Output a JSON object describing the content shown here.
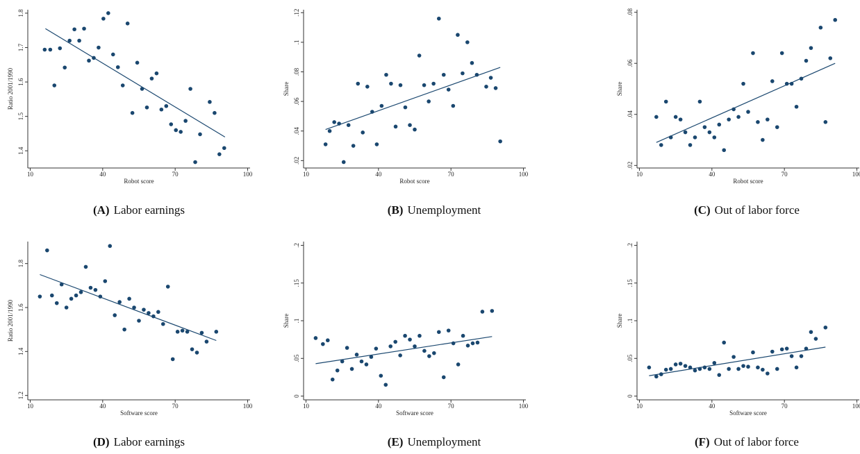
{
  "chart_data": [
    {
      "type": "scatter",
      "panel": "(A)",
      "title": "Labor earnings",
      "xlabel": "Robot score",
      "ylabel": "Ratio 2001/1990",
      "color": "#1a476f",
      "x": [
        16,
        18.3,
        20,
        22.3,
        24.3,
        26.3,
        28.3,
        30.3,
        32.3,
        34.3,
        36.3,
        38.3,
        40.3,
        42.3,
        44.3,
        46.3,
        48.3,
        50.3,
        52.3,
        54.3,
        56.3,
        58.3,
        60.3,
        62.3,
        64.3,
        66.3,
        68.3,
        70.3,
        72.3,
        74.3,
        76.3,
        78.3,
        80.3,
        84.3,
        86.3,
        88.3,
        90.3
      ],
      "y": [
        1.694,
        1.694,
        1.59,
        1.698,
        1.642,
        1.72,
        1.753,
        1.72,
        1.755,
        1.662,
        1.67,
        1.7,
        1.784,
        1.8,
        1.68,
        1.643,
        1.59,
        1.77,
        1.51,
        1.656,
        1.58,
        1.526,
        1.61,
        1.625,
        1.52,
        1.53,
        1.477,
        1.46,
        1.455,
        1.487,
        1.58,
        1.367,
        1.448,
        1.542,
        1.51,
        1.39,
        1.408
      ],
      "fit": {
        "x": [
          16.3,
          90.6
        ],
        "y": [
          1.755,
          1.44
        ]
      },
      "xlim": [
        9,
        101
      ],
      "ylim": [
        1.35,
        1.81
      ],
      "xticks": [
        10,
        40,
        70,
        100
      ],
      "yticks": [
        1.4,
        1.5,
        1.6,
        1.7,
        1.8
      ]
    },
    {
      "type": "scatter",
      "panel": "(B)",
      "title": "Unemployment",
      "xlabel": "Robot score",
      "ylabel": "Share",
      "color": "#1a476f",
      "x": [
        18.1,
        19.8,
        21.7,
        23.7,
        25.6,
        27.6,
        29.6,
        31.5,
        33.5,
        35.4,
        37.4,
        39.3,
        41.3,
        43.2,
        45.2,
        47.1,
        49.1,
        51.1,
        53,
        55,
        56.9,
        58.9,
        60.8,
        62.8,
        65,
        67,
        69,
        70.9,
        72.8,
        74.8,
        76.8,
        78.7,
        80.7,
        84.6,
        86.5,
        88.5,
        90.4
      ],
      "y": [
        0.031,
        0.04,
        0.046,
        0.045,
        0.019,
        0.044,
        0.03,
        0.072,
        0.039,
        0.07,
        0.053,
        0.031,
        0.057,
        0.078,
        0.072,
        0.043,
        0.071,
        0.056,
        0.044,
        0.041,
        0.091,
        0.071,
        0.06,
        0.072,
        0.116,
        0.078,
        0.068,
        0.057,
        0.105,
        0.079,
        0.1,
        0.086,
        0.078,
        0.07,
        0.076,
        0.069,
        0.033
      ],
      "fit": {
        "x": [
          18.1,
          90.4
        ],
        "y": [
          0.041,
          0.083
        ]
      },
      "xlim": [
        9,
        101
      ],
      "ylim": [
        0.015,
        0.122
      ],
      "xticks": [
        10,
        40,
        70,
        100
      ],
      "yticks": [
        {
          "value": 0.02,
          "label": ".02"
        },
        {
          "value": 0.04,
          "label": ".04"
        },
        {
          "value": 0.06,
          "label": ".06"
        },
        {
          "value": 0.08,
          "label": ".08"
        },
        {
          "value": 0.1,
          "label": ".1"
        },
        {
          "value": 0.12,
          "label": ".12"
        }
      ]
    },
    {
      "type": "scatter",
      "panel": "(C)",
      "title": "Out of labor force",
      "xlabel": "Robot score",
      "ylabel": "Share",
      "color": "#1a476f",
      "x": [
        17,
        19,
        21,
        23,
        25,
        27,
        29,
        31,
        33,
        35,
        37,
        39,
        41,
        43,
        45,
        47,
        49,
        51,
        53,
        55,
        57,
        59,
        61,
        63,
        65,
        67,
        69,
        71,
        73,
        75,
        77,
        79,
        81,
        85,
        87,
        89,
        91
      ],
      "y": [
        0.039,
        0.028,
        0.045,
        0.031,
        0.039,
        0.038,
        0.033,
        0.028,
        0.031,
        0.045,
        0.035,
        0.033,
        0.031,
        0.036,
        0.026,
        0.038,
        0.042,
        0.039,
        0.052,
        0.041,
        0.064,
        0.037,
        0.03,
        0.038,
        0.053,
        0.035,
        0.064,
        0.052,
        0.052,
        0.043,
        0.054,
        0.061,
        0.066,
        0.074,
        0.037,
        0.062,
        0.077
      ],
      "fit": {
        "x": [
          17,
          91
        ],
        "y": [
          0.029,
          0.06
        ]
      },
      "xlim": [
        9,
        101
      ],
      "ylim": [
        0.019,
        0.081
      ],
      "xticks": [
        10,
        40,
        70,
        100
      ],
      "yticks": [
        {
          "value": 0.02,
          "label": ".02"
        },
        {
          "value": 0.04,
          "label": ".04"
        },
        {
          "value": 0.06,
          "label": ".06"
        },
        {
          "value": 0.08,
          "label": ".08"
        }
      ]
    },
    {
      "type": "scatter",
      "panel": "(D)",
      "title": "Labor earnings",
      "xlabel": "Software score",
      "ylabel": "Ratio 2001/1990",
      "color": "#1a476f",
      "x": [
        14,
        17,
        19,
        21,
        23,
        25,
        27,
        29,
        31,
        33,
        35,
        37,
        39,
        41,
        43,
        45,
        47,
        49,
        51,
        53,
        55,
        57,
        59,
        61,
        63,
        65,
        67,
        69,
        71,
        73,
        75,
        77,
        79,
        81,
        83,
        87
      ],
      "y": [
        1.65,
        1.86,
        1.655,
        1.62,
        1.705,
        1.6,
        1.64,
        1.655,
        1.67,
        1.785,
        1.69,
        1.68,
        1.65,
        1.72,
        1.88,
        1.565,
        1.625,
        1.5,
        1.64,
        1.6,
        1.54,
        1.59,
        1.575,
        1.56,
        1.58,
        1.525,
        1.695,
        1.365,
        1.49,
        1.495,
        1.49,
        1.41,
        1.395,
        1.485,
        1.445,
        1.49
      ],
      "fit": {
        "x": [
          14,
          87
        ],
        "y": [
          1.75,
          1.45
        ]
      },
      "xlim": [
        9,
        101
      ],
      "ylim": [
        1.18,
        1.9
      ],
      "xticks": [
        10,
        40,
        70,
        100
      ],
      "yticks": [
        1.2,
        1.4,
        1.6,
        1.8
      ]
    },
    {
      "type": "scatter",
      "panel": "(E)",
      "title": "Unemployment",
      "xlabel": "Software score",
      "ylabel": "Share",
      "color": "#1a476f",
      "x": [
        14,
        17,
        19,
        21,
        23,
        25,
        27,
        29,
        31,
        33,
        35,
        37,
        39,
        41,
        43,
        45,
        47,
        49,
        51,
        53,
        55,
        57,
        59,
        61,
        63,
        65,
        67,
        69,
        71,
        73,
        75,
        77,
        79,
        81,
        83,
        87
      ],
      "y": [
        0.077,
        0.069,
        0.074,
        0.022,
        0.034,
        0.046,
        0.064,
        0.036,
        0.055,
        0.046,
        0.042,
        0.052,
        0.063,
        0.027,
        0.015,
        0.066,
        0.072,
        0.054,
        0.08,
        0.075,
        0.066,
        0.08,
        0.06,
        0.053,
        0.057,
        0.085,
        0.025,
        0.087,
        0.07,
        0.042,
        0.08,
        0.067,
        0.07,
        0.071,
        0.112,
        0.113
      ],
      "fit": {
        "x": [
          14,
          87
        ],
        "y": [
          0.043,
          0.079
        ]
      },
      "xlim": [
        9,
        101
      ],
      "ylim": [
        -0.005,
        0.205
      ],
      "xticks": [
        10,
        40,
        70,
        100
      ],
      "yticks": [
        0,
        {
          "value": 0.05,
          "label": ".05"
        },
        {
          "value": 0.1,
          "label": ".1"
        },
        {
          "value": 0.15,
          "label": ".15"
        },
        {
          "value": 0.2,
          "label": ".2"
        }
      ]
    },
    {
      "type": "scatter",
      "panel": "(F)",
      "title": "Out of labor force",
      "xlabel": "Software score",
      "ylabel": "Share",
      "color": "#1a476f",
      "x": [
        14,
        17,
        19,
        21,
        23,
        25,
        27,
        29,
        31,
        33,
        35,
        37,
        39,
        41,
        43,
        45,
        47,
        49,
        51,
        53,
        55,
        57,
        59,
        61,
        63,
        65,
        67,
        69,
        71,
        73,
        75,
        77,
        79,
        81,
        83,
        87
      ],
      "y": [
        0.038,
        0.026,
        0.029,
        0.035,
        0.036,
        0.042,
        0.043,
        0.04,
        0.038,
        0.034,
        0.036,
        0.038,
        0.036,
        0.044,
        0.028,
        0.071,
        0.036,
        0.052,
        0.036,
        0.04,
        0.039,
        0.058,
        0.038,
        0.035,
        0.03,
        0.059,
        0.036,
        0.062,
        0.063,
        0.053,
        0.038,
        0.053,
        0.063,
        0.085,
        0.076,
        0.091
      ],
      "fit": {
        "x": [
          14,
          87
        ],
        "y": [
          0.027,
          0.065
        ]
      },
      "xlim": [
        9,
        101
      ],
      "ylim": [
        -0.005,
        0.205
      ],
      "xticks": [
        10,
        40,
        70,
        100
      ],
      "yticks": [
        0,
        {
          "value": 0.05,
          "label": ".05"
        },
        {
          "value": 0.1,
          "label": ".1"
        },
        {
          "value": 0.15,
          "label": ".15"
        },
        {
          "value": 0.2,
          "label": ".2"
        }
      ]
    }
  ]
}
